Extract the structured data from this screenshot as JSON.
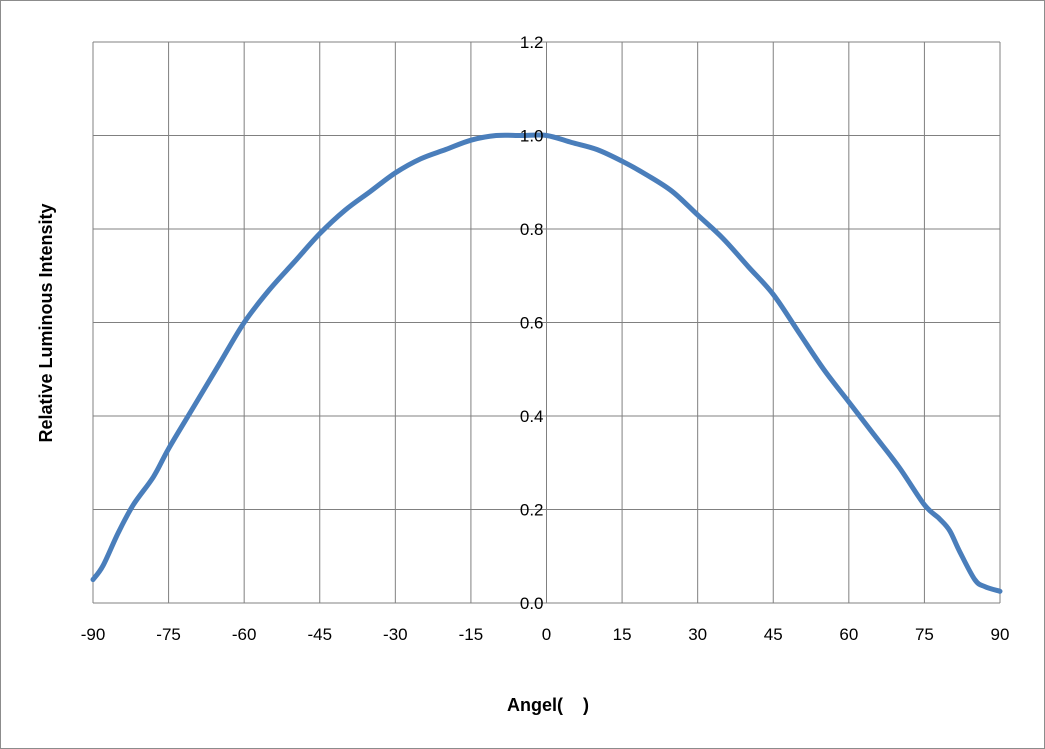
{
  "chart_data": {
    "type": "line",
    "title": "",
    "xlabel": "Angel(    )",
    "ylabel": "Relative Luminous Intensity",
    "xlim": [
      -90,
      90
    ],
    "ylim": [
      0,
      1.2
    ],
    "x_ticks": [
      "-90",
      "-75",
      "-60",
      "-45",
      "-30",
      "-15",
      "0",
      "15",
      "30",
      "45",
      "60",
      "75",
      "90"
    ],
    "y_ticks": [
      "0.0",
      "0.2",
      "0.4",
      "0.6",
      "0.8",
      "1.0",
      "1.2"
    ],
    "grid": true,
    "legend": "none",
    "colors": {
      "series": "#4a7ebb",
      "grid": "#808080",
      "frame": "#808080"
    },
    "series": [
      {
        "x": [
          -90,
          -88,
          -85,
          -82,
          -78,
          -75,
          -70,
          -65,
          -60,
          -55,
          -50,
          -45,
          -40,
          -35,
          -30,
          -25,
          -20,
          -15,
          -10,
          -5,
          0,
          5,
          10,
          15,
          20,
          25,
          30,
          35,
          40,
          45,
          50,
          55,
          60,
          65,
          70,
          75,
          78,
          80,
          82,
          85,
          87,
          90
        ],
        "y": [
          0.05,
          0.08,
          0.15,
          0.21,
          0.27,
          0.33,
          0.42,
          0.51,
          0.6,
          0.67,
          0.73,
          0.79,
          0.84,
          0.88,
          0.92,
          0.95,
          0.97,
          0.99,
          1.0,
          1.0,
          1.0,
          0.985,
          0.97,
          0.945,
          0.915,
          0.88,
          0.83,
          0.78,
          0.72,
          0.66,
          0.58,
          0.5,
          0.43,
          0.36,
          0.29,
          0.21,
          0.18,
          0.155,
          0.11,
          0.05,
          0.035,
          0.025
        ]
      }
    ]
  }
}
